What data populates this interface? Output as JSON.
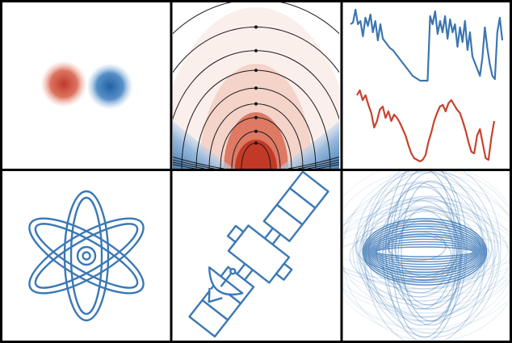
{
  "logo": {
    "tiles": [
      {
        "id": "tile-dipole-blobs",
        "icon": "dipole-blobs-icon"
      },
      {
        "id": "tile-field-lines",
        "icon": "magnetic-field-icon"
      },
      {
        "id": "tile-timeseries",
        "icon": "timeseries-icon"
      },
      {
        "id": "tile-atom",
        "icon": "atom-icon"
      },
      {
        "id": "tile-satellite",
        "icon": "satellite-icon"
      },
      {
        "id": "tile-field-loops",
        "icon": "field-loops-icon"
      }
    ]
  },
  "colors": {
    "border": "#000000",
    "background": "#ffffff",
    "red": "#d03a2a",
    "blue": "#2f78b5",
    "line_blue": "#3b76b0",
    "line_red": "#c8432d",
    "field_line": "#1a1a1a",
    "outline_blue": "#3a78b6"
  },
  "series": {
    "blue_trace": [
      30,
      28,
      12,
      30,
      26,
      45,
      22,
      32,
      18,
      40,
      26,
      50,
      30,
      48,
      52,
      56,
      60,
      62,
      66,
      70,
      74,
      78,
      82,
      86,
      90,
      94,
      96,
      98,
      100,
      100,
      100,
      100,
      20,
      30,
      14,
      42,
      26,
      40,
      20,
      48,
      24,
      40,
      30,
      58,
      34,
      52,
      26,
      62,
      40,
      70,
      78,
      86,
      94,
      72,
      34,
      60,
      80,
      94,
      98,
      40,
      22,
      50
    ],
    "red_trace": [
      118,
      112,
      124,
      118,
      130,
      140,
      158,
      150,
      136,
      132,
      146,
      138,
      150,
      142,
      146,
      152,
      160,
      168,
      180,
      190,
      196,
      198,
      200,
      198,
      192,
      176,
      164,
      150,
      140,
      132,
      130,
      138,
      128,
      124,
      130,
      136,
      140,
      150,
      162,
      176,
      188,
      190,
      168,
      160,
      178,
      196,
      198,
      170,
      150
    ]
  }
}
